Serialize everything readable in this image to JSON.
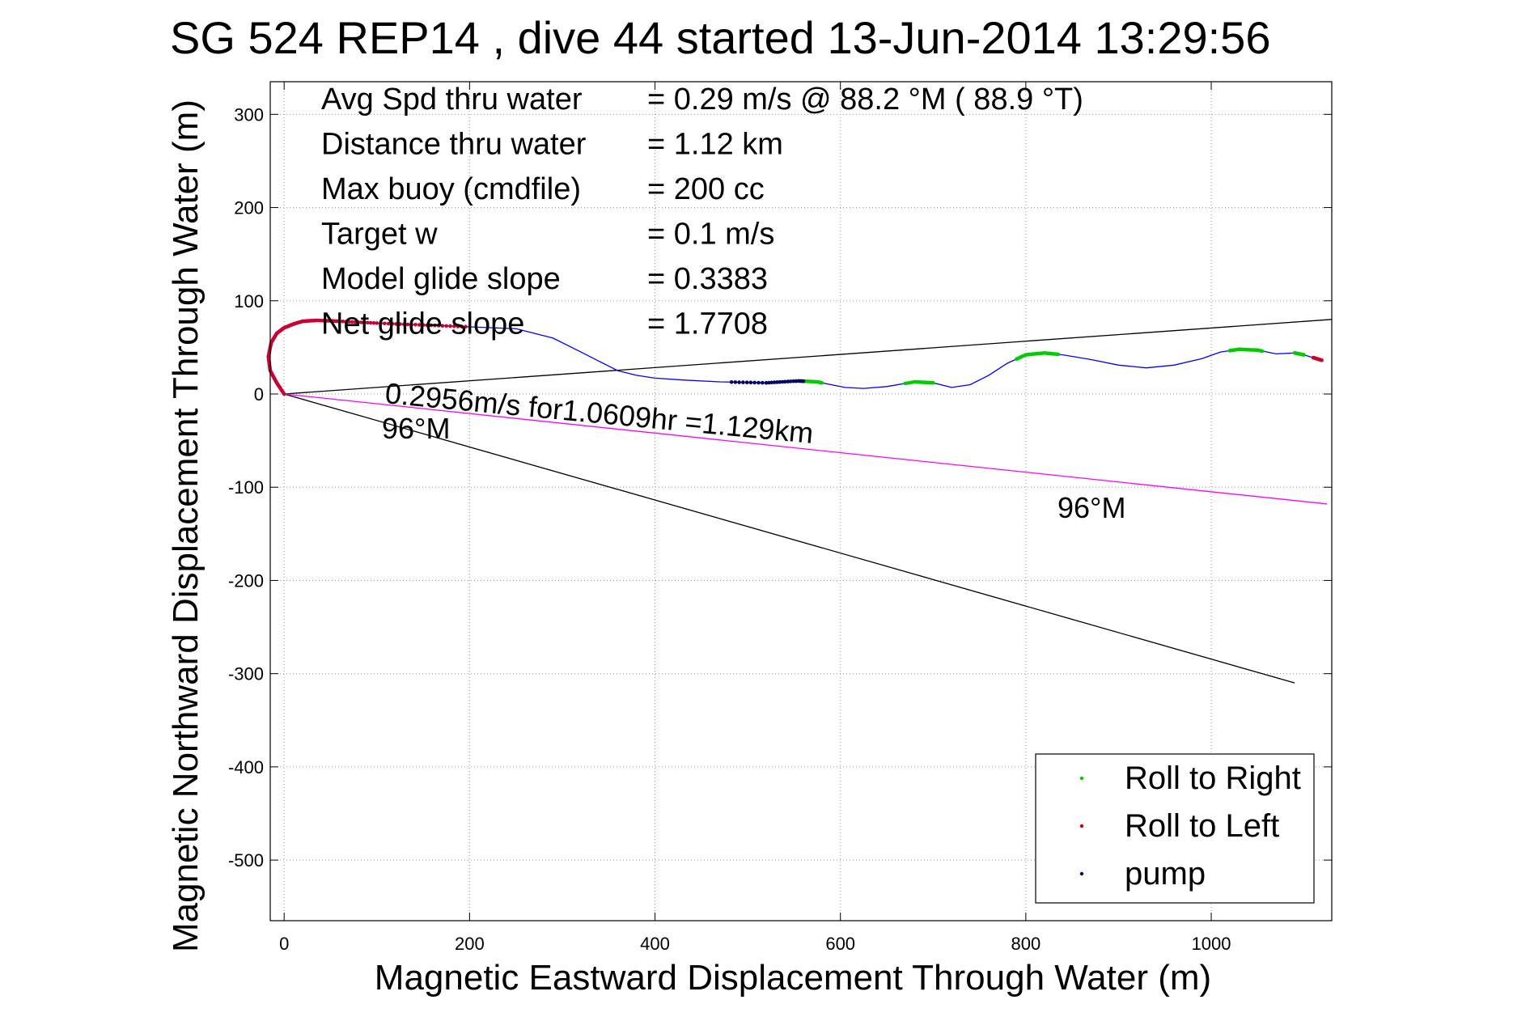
{
  "chart_data": {
    "type": "line",
    "title": "SG 524   REP14  , dive 44 started 13-Jun-2014 13:29:56",
    "xlabel": "Magnetic Eastward Displacement Through Water (m)",
    "ylabel": "Magnetic Northward Displacement Through Water (m)",
    "xlim": [
      -15,
      1130
    ],
    "ylim": [
      -565,
      335
    ],
    "xticks": [
      0,
      200,
      400,
      600,
      800,
      1000
    ],
    "yticks": [
      300,
      200,
      100,
      0,
      -100,
      -200,
      -300,
      -400,
      -500
    ],
    "grid": true,
    "stats": [
      {
        "label": "Avg Spd thru water",
        "value": "=  0.29 m/s @  88.2 °M ( 88.9 °T)"
      },
      {
        "label": "Distance thru water",
        "value": "=  1.12 km"
      },
      {
        "label": "Max buoy (cmdfile)",
        "value": "= 200 cc"
      },
      {
        "label": "Target w",
        "value": "= 0.1 m/s"
      },
      {
        "label": "Model glide slope",
        "value": "= 0.3383"
      },
      {
        "label": "Net glide slope",
        "value": "= 1.7708"
      }
    ],
    "annotations": {
      "speed": "0.2956m/s for1.0609hr =1.129km",
      "heading_near": "96°M",
      "heading_far": "96°M"
    },
    "track": {
      "color": "#0000ff",
      "x": [
        0,
        -8,
        -15,
        -17,
        -14,
        -8,
        0,
        10,
        20,
        35,
        60,
        100,
        150,
        200,
        250,
        290,
        320,
        340,
        360,
        380,
        400,
        430,
        470,
        520,
        555,
        575,
        590,
        605,
        625,
        650,
        680,
        700,
        720,
        740,
        760,
        780,
        800,
        820,
        840,
        870,
        900,
        930,
        960,
        990,
        1010,
        1030,
        1050,
        1070,
        1090,
        1100,
        1110,
        1120
      ],
      "y": [
        0,
        12,
        25,
        40,
        55,
        65,
        71,
        75,
        78,
        79,
        78,
        76,
        74,
        72,
        70,
        60,
        45,
        35,
        25,
        20,
        17,
        15,
        13,
        12,
        14,
        13,
        10,
        7,
        6,
        8,
        13,
        12,
        7,
        10,
        20,
        33,
        42,
        44,
        42,
        37,
        31,
        28,
        31,
        38,
        45,
        48,
        47,
        43,
        44,
        42,
        39,
        36
      ]
    },
    "lines": [
      {
        "name": "current-line",
        "color": "#000000",
        "x": [
          0,
          1130
        ],
        "y": [
          0,
          80
        ]
      },
      {
        "name": "heading-line-96M",
        "color": "#000000",
        "x": [
          0,
          1090
        ],
        "y": [
          0,
          -310
        ]
      },
      {
        "name": "net-displacement-line",
        "color": "#ff00ff",
        "x": [
          0,
          1125
        ],
        "y": [
          0,
          -118
        ]
      }
    ],
    "markers": [
      {
        "name": "Roll to Right",
        "color": "#00cc00",
        "segments": [
          [
            550,
            580
          ],
          [
            670,
            700
          ],
          [
            790,
            835
          ],
          [
            1020,
            1055
          ],
          [
            1090,
            1100
          ]
        ]
      },
      {
        "name": "Roll to Left",
        "color": "#cc0033",
        "segments": [
          [
            -17,
            40
          ],
          [
            1110,
            1120
          ]
        ]
      },
      {
        "name": "pump",
        "color": "#000066",
        "segments": [
          [
            480,
            560
          ]
        ]
      }
    ],
    "legend": {
      "placement": "bottom-right",
      "entries": [
        {
          "label": "Roll to Right",
          "color": "#00cc00"
        },
        {
          "label": "Roll to Left",
          "color": "#cc0000"
        },
        {
          "label": "pump",
          "color": "#000066"
        }
      ]
    }
  }
}
